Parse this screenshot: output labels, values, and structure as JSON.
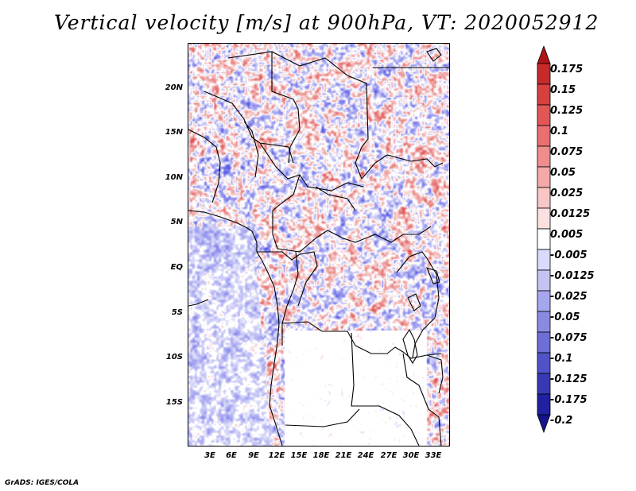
{
  "title": "Vertical velocity [m/s] at 900hPa, VT: 2020052912",
  "footer": "GrADS: IGES/COLA",
  "map": {
    "y_labels": [
      "20N",
      "15N",
      "10N",
      "5N",
      "EQ",
      "5S",
      "10S",
      "15S"
    ],
    "x_labels": [
      "3E",
      "6E",
      "9E",
      "12E",
      "15E",
      "18E",
      "21E",
      "24E",
      "27E",
      "30E",
      "33E"
    ]
  },
  "colorbar": {
    "labels": [
      "0.175",
      "0.15",
      "0.125",
      "0.1",
      "0.075",
      "0.05",
      "0.025",
      "0.0125",
      "0.005",
      "-0.005",
      "-0.0125",
      "-0.025",
      "-0.05",
      "-0.075",
      "-0.1",
      "-0.125",
      "-0.175",
      "-0.2"
    ],
    "colors": [
      "#b01515",
      "#c82a2a",
      "#d84040",
      "#e25656",
      "#ea7070",
      "#ef8c8c",
      "#f4a8a8",
      "#f8c6c6",
      "#fce0e0",
      "#ffffff",
      "#dadafa",
      "#c4c4f4",
      "#a6a6ec",
      "#8a8ae2",
      "#6e6ed6",
      "#5252c8",
      "#3838b6",
      "#2020a0",
      "#14148a"
    ]
  }
}
